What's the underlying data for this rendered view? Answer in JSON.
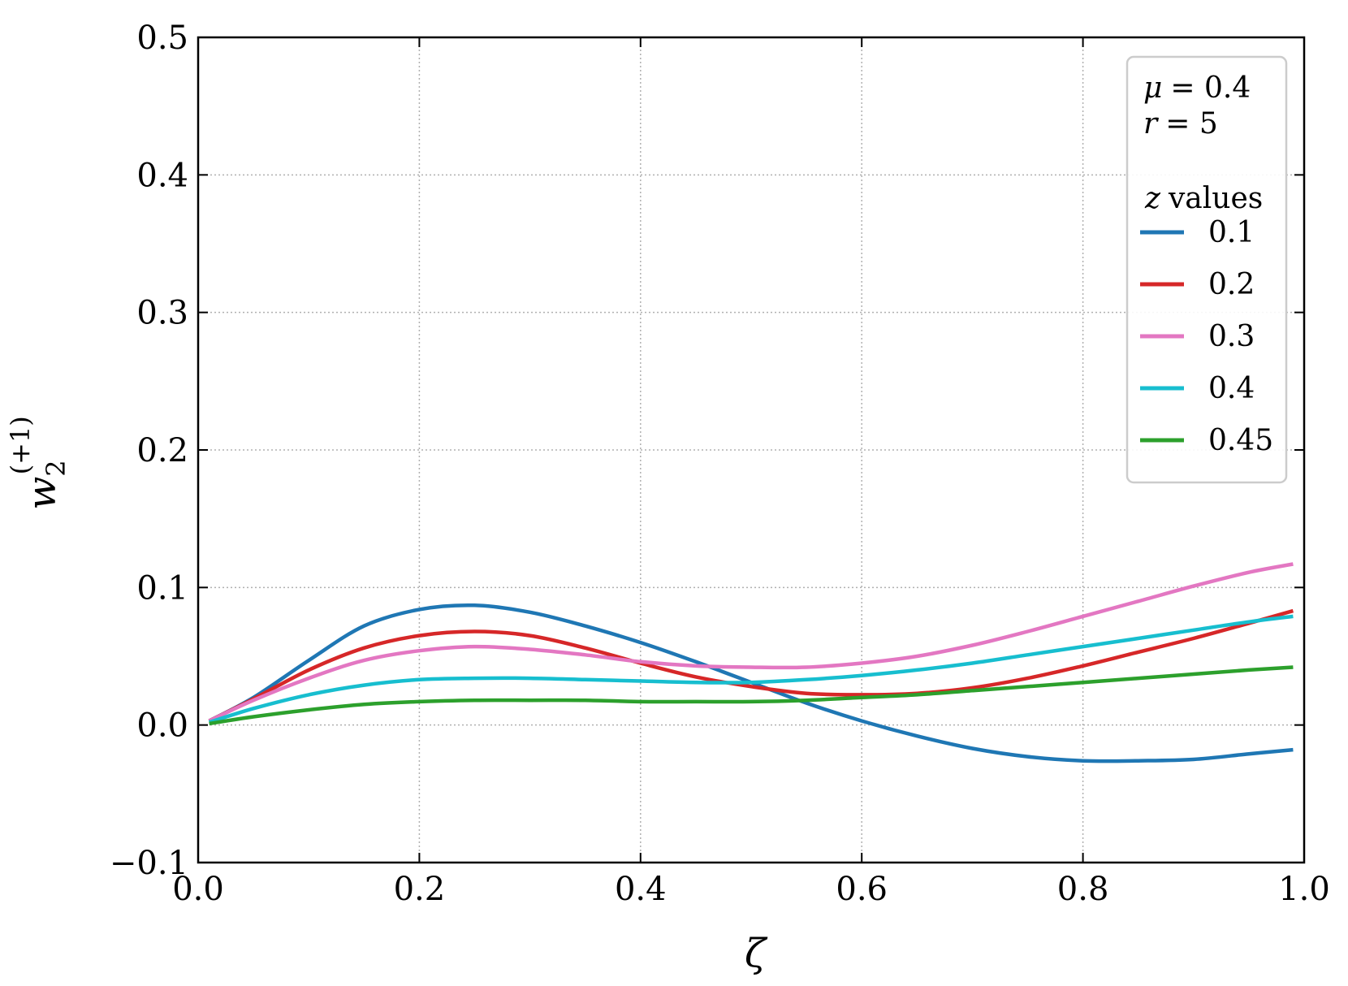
{
  "chart_data": {
    "type": "line",
    "xlabel": "ζ",
    "ylabel": {
      "base": "w",
      "sub": "2",
      "sup": "(+1)"
    },
    "xlim": [
      0.0,
      1.0
    ],
    "ylim": [
      -0.1,
      0.5
    ],
    "xticks": [
      0.0,
      0.2,
      0.4,
      0.6,
      0.8,
      1.0
    ],
    "xtick_labels": [
      "0.0",
      "0.2",
      "0.4",
      "0.6",
      "0.8",
      "1.0"
    ],
    "yticks": [
      -0.1,
      0.0,
      0.1,
      0.2,
      0.3,
      0.4,
      0.5
    ],
    "ytick_labels": [
      "−0.1",
      "0.0",
      "0.1",
      "0.2",
      "0.3",
      "0.4",
      "0.5"
    ],
    "grid": true,
    "legend": {
      "placement": "top-right",
      "params": [
        {
          "symbol": "μ",
          "value": "= 0.4"
        },
        {
          "symbol": "r",
          "value": "= 5"
        }
      ],
      "title_symbol": "z",
      "title_text": "values"
    },
    "series": [
      {
        "name": "0.1",
        "color": "#1f77b4",
        "x": [
          0.01,
          0.05,
          0.1,
          0.15,
          0.2,
          0.25,
          0.3,
          0.35,
          0.4,
          0.45,
          0.5,
          0.55,
          0.6,
          0.65,
          0.7,
          0.75,
          0.8,
          0.85,
          0.9,
          0.95,
          0.99
        ],
        "y": [
          0.003,
          0.02,
          0.047,
          0.072,
          0.084,
          0.087,
          0.082,
          0.072,
          0.06,
          0.046,
          0.031,
          0.016,
          0.003,
          -0.008,
          -0.017,
          -0.023,
          -0.026,
          -0.026,
          -0.025,
          -0.021,
          -0.018
        ]
      },
      {
        "name": "0.2",
        "color": "#d62728",
        "x": [
          0.01,
          0.05,
          0.1,
          0.15,
          0.2,
          0.25,
          0.3,
          0.35,
          0.4,
          0.45,
          0.5,
          0.55,
          0.6,
          0.65,
          0.7,
          0.75,
          0.8,
          0.85,
          0.9,
          0.95,
          0.99
        ],
        "y": [
          0.003,
          0.019,
          0.04,
          0.056,
          0.065,
          0.068,
          0.065,
          0.056,
          0.045,
          0.035,
          0.028,
          0.023,
          0.022,
          0.023,
          0.027,
          0.034,
          0.043,
          0.053,
          0.063,
          0.074,
          0.083
        ]
      },
      {
        "name": "0.3",
        "color": "#e377c2",
        "x": [
          0.01,
          0.05,
          0.1,
          0.15,
          0.2,
          0.25,
          0.3,
          0.35,
          0.4,
          0.45,
          0.5,
          0.55,
          0.6,
          0.65,
          0.7,
          0.75,
          0.8,
          0.85,
          0.9,
          0.95,
          0.99
        ],
        "y": [
          0.003,
          0.018,
          0.034,
          0.047,
          0.054,
          0.057,
          0.055,
          0.051,
          0.046,
          0.043,
          0.042,
          0.042,
          0.045,
          0.05,
          0.058,
          0.068,
          0.079,
          0.09,
          0.101,
          0.111,
          0.117
        ]
      },
      {
        "name": "0.4",
        "color": "#17becf",
        "x": [
          0.01,
          0.05,
          0.1,
          0.15,
          0.2,
          0.25,
          0.3,
          0.35,
          0.4,
          0.45,
          0.5,
          0.55,
          0.6,
          0.65,
          0.7,
          0.75,
          0.8,
          0.85,
          0.9,
          0.95,
          0.99
        ],
        "y": [
          0.002,
          0.012,
          0.022,
          0.029,
          0.033,
          0.034,
          0.034,
          0.033,
          0.032,
          0.031,
          0.031,
          0.033,
          0.036,
          0.04,
          0.045,
          0.051,
          0.057,
          0.063,
          0.069,
          0.075,
          0.079
        ]
      },
      {
        "name": "0.45",
        "color": "#2ca02c",
        "x": [
          0.01,
          0.05,
          0.1,
          0.15,
          0.2,
          0.25,
          0.3,
          0.35,
          0.4,
          0.45,
          0.5,
          0.55,
          0.6,
          0.65,
          0.7,
          0.75,
          0.8,
          0.85,
          0.9,
          0.95,
          0.99
        ],
        "y": [
          0.001,
          0.006,
          0.011,
          0.015,
          0.017,
          0.018,
          0.018,
          0.018,
          0.017,
          0.017,
          0.017,
          0.018,
          0.02,
          0.022,
          0.025,
          0.028,
          0.031,
          0.034,
          0.037,
          0.04,
          0.042
        ]
      }
    ]
  }
}
